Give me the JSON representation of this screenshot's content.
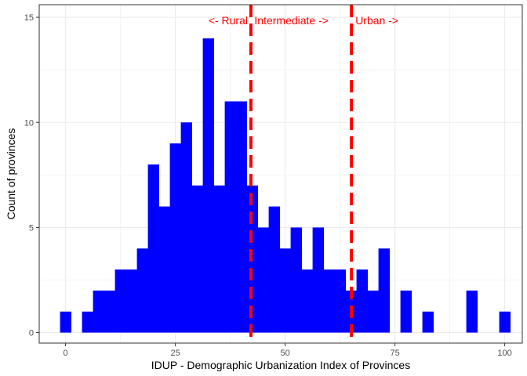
{
  "chart_data": {
    "type": "histogram",
    "xlabel": "IDUP - Demographic Urbanization Index of Provinces",
    "ylabel": "Count of provinces",
    "xlim": [
      -6,
      104
    ],
    "ylim": [
      -0.5,
      15.6
    ],
    "x_ticks": [
      0,
      25,
      50,
      75,
      100
    ],
    "x_tick_labels": [
      "0",
      "25",
      "50",
      "75",
      "100"
    ],
    "y_ticks": [
      0,
      5,
      10,
      15
    ],
    "y_tick_labels": [
      "0",
      "5",
      "10",
      "15"
    ],
    "grid": true,
    "bar_color": "#0000ff",
    "bin_width": 2.5,
    "bins": [
      {
        "x0": -1.25,
        "count": 1
      },
      {
        "x0": 1.25,
        "count": 0
      },
      {
        "x0": 3.75,
        "count": 1
      },
      {
        "x0": 6.25,
        "count": 2
      },
      {
        "x0": 8.75,
        "count": 2
      },
      {
        "x0": 11.25,
        "count": 3
      },
      {
        "x0": 13.75,
        "count": 3
      },
      {
        "x0": 16.25,
        "count": 4
      },
      {
        "x0": 18.75,
        "count": 8
      },
      {
        "x0": 21.25,
        "count": 6
      },
      {
        "x0": 23.75,
        "count": 9
      },
      {
        "x0": 26.25,
        "count": 10
      },
      {
        "x0": 28.75,
        "count": 7
      },
      {
        "x0": 31.25,
        "count": 14
      },
      {
        "x0": 33.75,
        "count": 7
      },
      {
        "x0": 36.25,
        "count": 11
      },
      {
        "x0": 38.75,
        "count": 11
      },
      {
        "x0": 41.25,
        "count": 7
      },
      {
        "x0": 43.75,
        "count": 5
      },
      {
        "x0": 46.25,
        "count": 6
      },
      {
        "x0": 48.75,
        "count": 4
      },
      {
        "x0": 51.25,
        "count": 5
      },
      {
        "x0": 53.75,
        "count": 3
      },
      {
        "x0": 56.25,
        "count": 5
      },
      {
        "x0": 58.75,
        "count": 3
      },
      {
        "x0": 61.25,
        "count": 3
      },
      {
        "x0": 63.75,
        "count": 2
      },
      {
        "x0": 66.25,
        "count": 3
      },
      {
        "x0": 68.75,
        "count": 2
      },
      {
        "x0": 71.25,
        "count": 4
      },
      {
        "x0": 73.75,
        "count": 0
      },
      {
        "x0": 76.25,
        "count": 2
      },
      {
        "x0": 78.75,
        "count": 0
      },
      {
        "x0": 81.25,
        "count": 1
      },
      {
        "x0": 83.75,
        "count": 0
      },
      {
        "x0": 86.25,
        "count": 0
      },
      {
        "x0": 88.75,
        "count": 0
      },
      {
        "x0": 91.25,
        "count": 2
      },
      {
        "x0": 93.75,
        "count": 0
      },
      {
        "x0": 96.25,
        "count": 0
      },
      {
        "x0": 98.75,
        "count": 1
      }
    ],
    "vlines": [
      {
        "x": 42.2,
        "color": "#ff0000",
        "style": "dashed"
      },
      {
        "x": 65.1,
        "color": "#ff0000",
        "style": "dashed"
      }
    ],
    "annotations": [
      {
        "text": "<- Rural",
        "x": 41.5,
        "y": 14.85,
        "anchor": "end",
        "color": "#ff0000"
      },
      {
        "text": "Intermediate ->",
        "x": 43.0,
        "y": 14.85,
        "anchor": "start",
        "color": "#ff0000"
      },
      {
        "text": "Urban ->",
        "x": 66.0,
        "y": 14.85,
        "anchor": "start",
        "color": "#ff0000"
      }
    ]
  }
}
